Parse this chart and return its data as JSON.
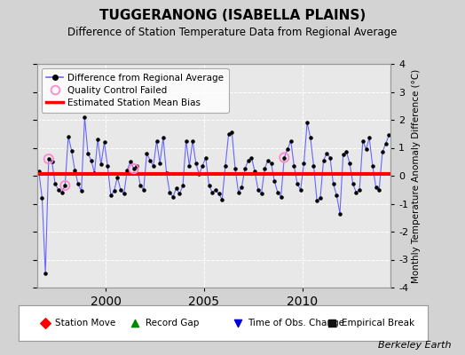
{
  "title": "TUGGERANONG (ISABELLA PLAINS)",
  "subtitle": "Difference of Station Temperature Data from Regional Average",
  "ylabel_right": "Monthly Temperature Anomaly Difference (°C)",
  "credit": "Berkeley Earth",
  "xlim": [
    1996.5,
    2014.5
  ],
  "ylim": [
    -4,
    4
  ],
  "yticks": [
    -4,
    -3,
    -2,
    -1,
    0,
    1,
    2,
    3,
    4
  ],
  "xticks": [
    2000,
    2005,
    2010
  ],
  "bias_value": 0.05,
  "bg_color": "#d3d3d3",
  "plot_bg_color": "#e8e8e8",
  "line_color": "#6666ff",
  "dot_color": "#000000",
  "bias_color": "#ff0000",
  "qc_color": "#ff88cc",
  "time_series": [
    [
      1996.583,
      0.15
    ],
    [
      1996.75,
      -0.8
    ],
    [
      1996.917,
      -3.5
    ],
    [
      1997.083,
      0.6
    ],
    [
      1997.25,
      0.5
    ],
    [
      1997.417,
      -0.3
    ],
    [
      1997.583,
      -0.5
    ],
    [
      1997.75,
      -0.6
    ],
    [
      1997.917,
      -0.35
    ],
    [
      1998.083,
      1.4
    ],
    [
      1998.25,
      0.9
    ],
    [
      1998.417,
      0.2
    ],
    [
      1998.583,
      -0.3
    ],
    [
      1998.75,
      -0.55
    ],
    [
      1998.917,
      2.1
    ],
    [
      1999.083,
      0.8
    ],
    [
      1999.25,
      0.55
    ],
    [
      1999.417,
      0.1
    ],
    [
      1999.583,
      1.3
    ],
    [
      1999.75,
      0.4
    ],
    [
      1999.917,
      1.2
    ],
    [
      2000.083,
      0.35
    ],
    [
      2000.25,
      -0.7
    ],
    [
      2000.417,
      -0.55
    ],
    [
      2000.583,
      -0.05
    ],
    [
      2000.75,
      -0.5
    ],
    [
      2000.917,
      -0.65
    ],
    [
      2001.083,
      0.2
    ],
    [
      2001.25,
      0.5
    ],
    [
      2001.417,
      0.25
    ],
    [
      2001.583,
      0.35
    ],
    [
      2001.75,
      -0.35
    ],
    [
      2001.917,
      -0.5
    ],
    [
      2002.083,
      0.8
    ],
    [
      2002.25,
      0.55
    ],
    [
      2002.417,
      0.35
    ],
    [
      2002.583,
      1.25
    ],
    [
      2002.75,
      0.45
    ],
    [
      2002.917,
      1.35
    ],
    [
      2003.083,
      0.1
    ],
    [
      2003.25,
      -0.6
    ],
    [
      2003.417,
      -0.75
    ],
    [
      2003.583,
      -0.45
    ],
    [
      2003.75,
      -0.65
    ],
    [
      2003.917,
      -0.35
    ],
    [
      2004.083,
      1.25
    ],
    [
      2004.25,
      0.35
    ],
    [
      2004.417,
      1.25
    ],
    [
      2004.583,
      0.45
    ],
    [
      2004.75,
      0.05
    ],
    [
      2004.917,
      0.35
    ],
    [
      2005.083,
      0.65
    ],
    [
      2005.25,
      -0.35
    ],
    [
      2005.417,
      -0.6
    ],
    [
      2005.583,
      -0.5
    ],
    [
      2005.75,
      -0.65
    ],
    [
      2005.917,
      -0.85
    ],
    [
      2006.083,
      0.35
    ],
    [
      2006.25,
      1.5
    ],
    [
      2006.417,
      1.55
    ],
    [
      2006.583,
      0.25
    ],
    [
      2006.75,
      -0.6
    ],
    [
      2006.917,
      -0.4
    ],
    [
      2007.083,
      0.25
    ],
    [
      2007.25,
      0.55
    ],
    [
      2007.417,
      0.65
    ],
    [
      2007.583,
      0.15
    ],
    [
      2007.75,
      -0.5
    ],
    [
      2007.917,
      -0.65
    ],
    [
      2008.083,
      0.25
    ],
    [
      2008.25,
      0.55
    ],
    [
      2008.417,
      0.45
    ],
    [
      2008.583,
      -0.2
    ],
    [
      2008.75,
      -0.6
    ],
    [
      2008.917,
      -0.75
    ],
    [
      2009.083,
      0.65
    ],
    [
      2009.25,
      0.95
    ],
    [
      2009.417,
      1.25
    ],
    [
      2009.583,
      0.35
    ],
    [
      2009.75,
      -0.3
    ],
    [
      2009.917,
      -0.5
    ],
    [
      2010.083,
      0.45
    ],
    [
      2010.25,
      1.9
    ],
    [
      2010.417,
      1.35
    ],
    [
      2010.583,
      0.35
    ],
    [
      2010.75,
      -0.9
    ],
    [
      2010.917,
      -0.8
    ],
    [
      2011.083,
      0.55
    ],
    [
      2011.25,
      0.8
    ],
    [
      2011.417,
      0.65
    ],
    [
      2011.583,
      -0.3
    ],
    [
      2011.75,
      -0.7
    ],
    [
      2011.917,
      -1.35
    ],
    [
      2012.083,
      0.75
    ],
    [
      2012.25,
      0.85
    ],
    [
      2012.417,
      0.45
    ],
    [
      2012.583,
      -0.3
    ],
    [
      2012.75,
      -0.6
    ],
    [
      2012.917,
      -0.5
    ],
    [
      2013.083,
      1.25
    ],
    [
      2013.25,
      0.95
    ],
    [
      2013.417,
      1.35
    ],
    [
      2013.583,
      0.35
    ],
    [
      2013.75,
      -0.4
    ],
    [
      2013.917,
      -0.5
    ],
    [
      2014.083,
      0.85
    ],
    [
      2014.25,
      1.15
    ],
    [
      2014.417,
      1.45
    ]
  ],
  "qc_failed": [
    [
      1997.083,
      0.6
    ],
    [
      1997.917,
      -0.35
    ],
    [
      2001.417,
      0.25
    ],
    [
      2009.083,
      0.65
    ]
  ],
  "legend2_items": [
    {
      "label": "Station Move",
      "color": "#ff0000",
      "marker": "D"
    },
    {
      "label": "Record Gap",
      "color": "#008800",
      "marker": "^"
    },
    {
      "label": "Time of Obs. Change",
      "color": "#0000dd",
      "marker": "v"
    },
    {
      "label": "Empirical Break",
      "color": "#111111",
      "marker": "s"
    }
  ]
}
